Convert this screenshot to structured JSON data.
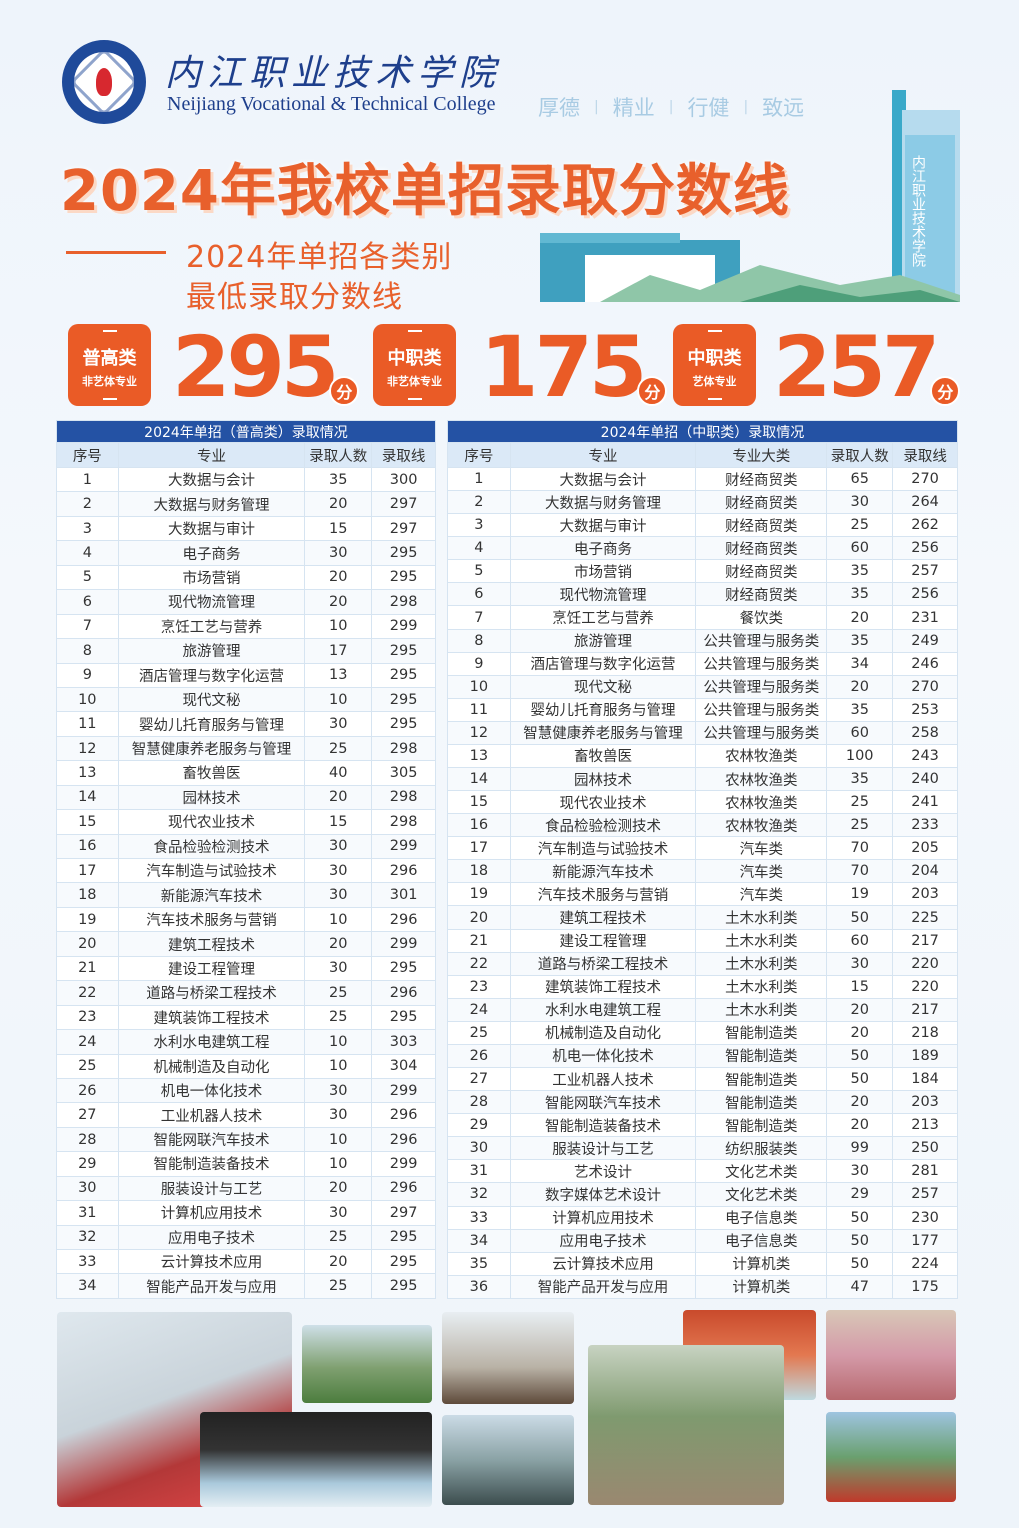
{
  "header": {
    "college_name_cn": "内江职业技术学院",
    "college_name_en": "Neijiang Vocational & Technical College",
    "motto": [
      "厚德",
      "精业",
      "行健",
      "致远"
    ],
    "building_sign": "内江职业技术学院"
  },
  "title": "2024年我校单招录取分数线",
  "subtitle_line1": "2024年单招各类别",
  "subtitle_line2": "最低录取分数线",
  "scores": [
    {
      "category": "普高类",
      "note": "非艺体专业",
      "score": "295",
      "unit": "分"
    },
    {
      "category": "中职类",
      "note": "非艺体专业",
      "score": "175",
      "unit": "分"
    },
    {
      "category": "中职类",
      "note": "艺体专业",
      "score": "257",
      "unit": "分"
    }
  ],
  "colors": {
    "accent": "#ea5b26",
    "table_header": "#2452a4",
    "brand_blue": "#1e3f8c"
  },
  "table_general": {
    "caption": "2024年单招（普高类）录取情况",
    "columns": [
      "序号",
      "专业",
      "录取人数",
      "录取线"
    ],
    "rows": [
      [
        "1",
        "大数据与会计",
        "35",
        "300"
      ],
      [
        "2",
        "大数据与财务管理",
        "20",
        "297"
      ],
      [
        "3",
        "大数据与审计",
        "15",
        "297"
      ],
      [
        "4",
        "电子商务",
        "30",
        "295"
      ],
      [
        "5",
        "市场营销",
        "20",
        "295"
      ],
      [
        "6",
        "现代物流管理",
        "20",
        "298"
      ],
      [
        "7",
        "烹饪工艺与营养",
        "10",
        "299"
      ],
      [
        "8",
        "旅游管理",
        "17",
        "295"
      ],
      [
        "9",
        "酒店管理与数字化运营",
        "13",
        "295"
      ],
      [
        "10",
        "现代文秘",
        "10",
        "295"
      ],
      [
        "11",
        "婴幼儿托育服务与管理",
        "30",
        "295"
      ],
      [
        "12",
        "智慧健康养老服务与管理",
        "25",
        "298"
      ],
      [
        "13",
        "畜牧兽医",
        "40",
        "305"
      ],
      [
        "14",
        "园林技术",
        "20",
        "298"
      ],
      [
        "15",
        "现代农业技术",
        "15",
        "298"
      ],
      [
        "16",
        "食品检验检测技术",
        "30",
        "299"
      ],
      [
        "17",
        "汽车制造与试验技术",
        "30",
        "296"
      ],
      [
        "18",
        "新能源汽车技术",
        "30",
        "301"
      ],
      [
        "19",
        "汽车技术服务与营销",
        "10",
        "296"
      ],
      [
        "20",
        "建筑工程技术",
        "20",
        "299"
      ],
      [
        "21",
        "建设工程管理",
        "30",
        "295"
      ],
      [
        "22",
        "道路与桥梁工程技术",
        "25",
        "296"
      ],
      [
        "23",
        "建筑装饰工程技术",
        "25",
        "295"
      ],
      [
        "24",
        "水利水电建筑工程",
        "10",
        "303"
      ],
      [
        "25",
        "机械制造及自动化",
        "10",
        "304"
      ],
      [
        "26",
        "机电一体化技术",
        "30",
        "299"
      ],
      [
        "27",
        "工业机器人技术",
        "30",
        "296"
      ],
      [
        "28",
        "智能网联汽车技术",
        "10",
        "296"
      ],
      [
        "29",
        "智能制造装备技术",
        "10",
        "299"
      ],
      [
        "30",
        "服装设计与工艺",
        "20",
        "296"
      ],
      [
        "31",
        "计算机应用技术",
        "30",
        "297"
      ],
      [
        "32",
        "应用电子技术",
        "25",
        "295"
      ],
      [
        "33",
        "云计算技术应用",
        "20",
        "295"
      ],
      [
        "34",
        "智能产品开发与应用",
        "25",
        "295"
      ]
    ]
  },
  "table_vocational": {
    "caption": "2024年单招（中职类）录取情况",
    "columns": [
      "序号",
      "专业",
      "专业大类",
      "录取人数",
      "录取线"
    ],
    "rows": [
      [
        "1",
        "大数据与会计",
        "财经商贸类",
        "65",
        "270"
      ],
      [
        "2",
        "大数据与财务管理",
        "财经商贸类",
        "30",
        "264"
      ],
      [
        "3",
        "大数据与审计",
        "财经商贸类",
        "25",
        "262"
      ],
      [
        "4",
        "电子商务",
        "财经商贸类",
        "60",
        "256"
      ],
      [
        "5",
        "市场营销",
        "财经商贸类",
        "35",
        "257"
      ],
      [
        "6",
        "现代物流管理",
        "财经商贸类",
        "35",
        "256"
      ],
      [
        "7",
        "烹饪工艺与营养",
        "餐饮类",
        "20",
        "231"
      ],
      [
        "8",
        "旅游管理",
        "公共管理与服务类",
        "35",
        "249"
      ],
      [
        "9",
        "酒店管理与数字化运营",
        "公共管理与服务类",
        "34",
        "246"
      ],
      [
        "10",
        "现代文秘",
        "公共管理与服务类",
        "20",
        "270"
      ],
      [
        "11",
        "婴幼儿托育服务与管理",
        "公共管理与服务类",
        "35",
        "253"
      ],
      [
        "12",
        "智慧健康养老服务与管理",
        "公共管理与服务类",
        "60",
        "258"
      ],
      [
        "13",
        "畜牧兽医",
        "农林牧渔类",
        "100",
        "243"
      ],
      [
        "14",
        "园林技术",
        "农林牧渔类",
        "35",
        "240"
      ],
      [
        "15",
        "现代农业技术",
        "农林牧渔类",
        "25",
        "241"
      ],
      [
        "16",
        "食品检验检测技术",
        "农林牧渔类",
        "25",
        "233"
      ],
      [
        "17",
        "汽车制造与试验技术",
        "汽车类",
        "70",
        "205"
      ],
      [
        "18",
        "新能源汽车技术",
        "汽车类",
        "70",
        "204"
      ],
      [
        "19",
        "汽车技术服务与营销",
        "汽车类",
        "19",
        "203"
      ],
      [
        "20",
        "建筑工程技术",
        "土木水利类",
        "50",
        "225"
      ],
      [
        "21",
        "建设工程管理",
        "土木水利类",
        "60",
        "217"
      ],
      [
        "22",
        "道路与桥梁工程技术",
        "土木水利类",
        "30",
        "220"
      ],
      [
        "23",
        "建筑装饰工程技术",
        "土木水利类",
        "15",
        "220"
      ],
      [
        "24",
        "水利水电建筑工程",
        "土木水利类",
        "20",
        "217"
      ],
      [
        "25",
        "机械制造及自动化",
        "智能制造类",
        "20",
        "218"
      ],
      [
        "26",
        "机电一体化技术",
        "智能制造类",
        "50",
        "189"
      ],
      [
        "27",
        "工业机器人技术",
        "智能制造类",
        "50",
        "184"
      ],
      [
        "28",
        "智能网联汽车技术",
        "智能制造类",
        "20",
        "203"
      ],
      [
        "29",
        "智能制造装备技术",
        "智能制造类",
        "20",
        "213"
      ],
      [
        "30",
        "服装设计与工艺",
        "纺织服装类",
        "99",
        "250"
      ],
      [
        "31",
        "艺术设计",
        "文化艺术类",
        "30",
        "281"
      ],
      [
        "32",
        "数字媒体艺术设计",
        "文化艺术类",
        "29",
        "257"
      ],
      [
        "33",
        "计算机应用技术",
        "电子信息类",
        "50",
        "230"
      ],
      [
        "34",
        "应用电子技术",
        "电子信息类",
        "50",
        "177"
      ],
      [
        "35",
        "云计算技术应用",
        "计算机类",
        "50",
        "224"
      ],
      [
        "36",
        "智能产品开发与应用",
        "计算机类",
        "47",
        "175"
      ]
    ]
  },
  "photos": [
    "volunteers-photo",
    "football-photo",
    "classroom-photo",
    "performance-photo",
    "dance-photo",
    "choir-photo",
    "flag-ceremony-photo",
    "fieldwork-photo",
    "sports-group-photo"
  ]
}
